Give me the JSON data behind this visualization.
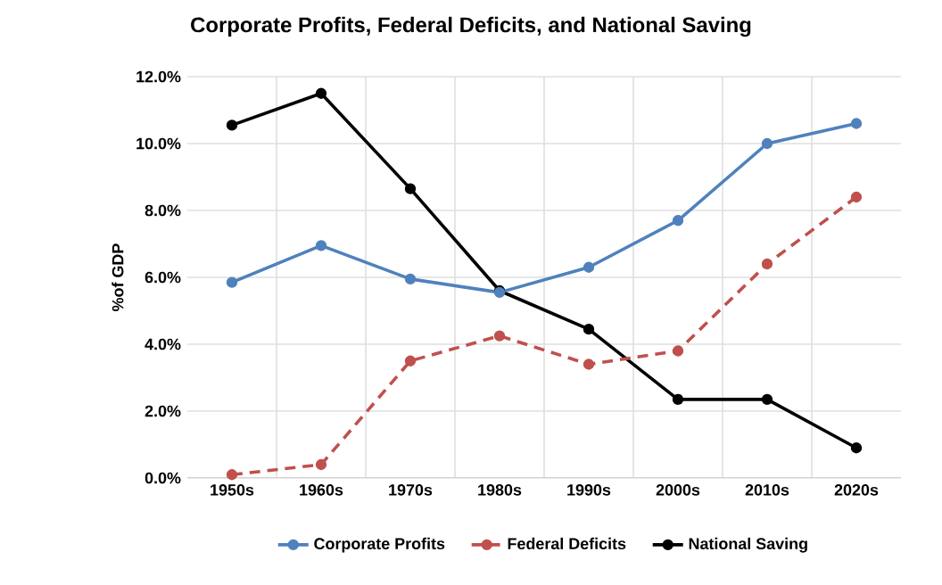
{
  "chart_data": {
    "type": "line",
    "title": "Corporate Profits, Federal Deficits, and National Saving",
    "ylabel": "%of GDP",
    "categories": [
      "1950s",
      "1960s",
      "1970s",
      "1980s",
      "1990s",
      "2000s",
      "2010s",
      "2020s"
    ],
    "series": [
      {
        "name": "Corporate Profits",
        "color": "#4f81bd",
        "line_style": "solid",
        "values": [
          5.85,
          6.95,
          5.95,
          5.55,
          6.3,
          7.7,
          10.0,
          10.6
        ]
      },
      {
        "name": "Federal Deficits",
        "color": "#c0504d",
        "line_style": "dashed",
        "values": [
          0.1,
          0.4,
          3.5,
          4.25,
          3.4,
          3.8,
          6.4,
          8.4
        ]
      },
      {
        "name": "National Saving",
        "color": "#000000",
        "line_style": "solid",
        "values": [
          10.55,
          11.5,
          8.65,
          5.6,
          4.45,
          2.35,
          2.35,
          0.9
        ]
      }
    ],
    "ylim": [
      0,
      12
    ],
    "yticks": [
      {
        "value": 0,
        "label": "0.0%"
      },
      {
        "value": 2,
        "label": "2.0%"
      },
      {
        "value": 4,
        "label": "4.0%"
      },
      {
        "value": 6,
        "label": "6.0%"
      },
      {
        "value": 8,
        "label": "8.0%"
      },
      {
        "value": 10,
        "label": "10.0%"
      },
      {
        "value": 12,
        "label": "12.0%"
      }
    ],
    "grid": true,
    "legend": "bottom",
    "marker": "circle"
  }
}
